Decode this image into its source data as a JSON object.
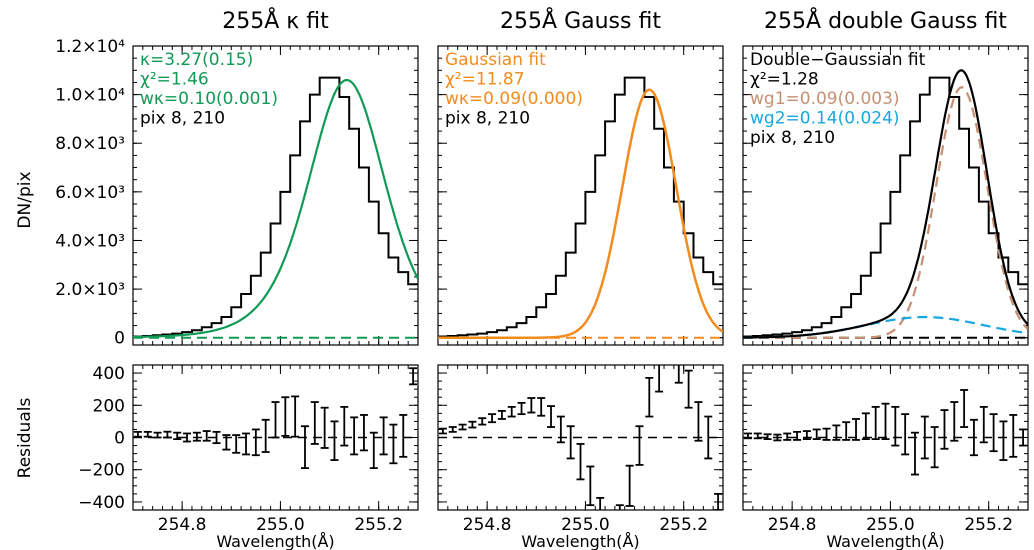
{
  "shared": {
    "ylabel_top": "DN/pix",
    "ylabel_bottom": "Residuals",
    "xlabel": "Wavelength(Å)",
    "xticks": [
      "254.8",
      "255.0",
      "255.2"
    ],
    "yticks_top": [
      "0",
      "2.0×10³",
      "4.0×10³",
      "6.0×10³",
      "8.0×10³",
      "1.0×10⁴",
      "1.2×10⁴"
    ],
    "yticks_bottom": [
      "400",
      "200",
      "0",
      "−200",
      "−400"
    ]
  },
  "colors": {
    "kappa": "#119a55",
    "gauss": "#f28c1e",
    "g1": "#c69074",
    "g2": "#15a8e0",
    "data": "#000000"
  },
  "chart_data": [
    {
      "type": "line",
      "title": "255Å κ fit",
      "xlim": [
        254.7,
        255.28
      ],
      "ylim": [
        -300,
        12000
      ],
      "residual_ylim": [
        -450,
        450
      ],
      "annotations": [
        {
          "text": "κ=3.27(0.15)",
          "color": "#119a55"
        },
        {
          "text": "χ²=1.46",
          "color": "#119a55"
        },
        {
          "text": "wκ=0.10(0.001)",
          "color": "#119a55"
        },
        {
          "text": "pix 8, 210",
          "color": "#000000"
        }
      ],
      "fit_name": "κ fit",
      "fit_color": "#119a55",
      "residuals": {
        "x": [
          254.71,
          254.73,
          254.75,
          254.77,
          254.79,
          254.81,
          254.83,
          254.85,
          254.87,
          254.89,
          254.91,
          254.93,
          254.95,
          254.97,
          254.99,
          255.01,
          255.03,
          255.05,
          255.07,
          255.09,
          255.11,
          255.13,
          255.15,
          255.17,
          255.19,
          255.21,
          255.23,
          255.25,
          255.27
        ],
        "y": [
          20,
          20,
          15,
          18,
          10,
          0,
          5,
          10,
          0,
          -30,
          -40,
          -40,
          -30,
          10,
          110,
          130,
          130,
          -60,
          90,
          60,
          -20,
          70,
          10,
          30,
          -80,
          10,
          -40,
          10,
          380
        ],
        "err": [
          15,
          15,
          15,
          18,
          20,
          25,
          25,
          30,
          35,
          45,
          55,
          65,
          80,
          100,
          110,
          120,
          125,
          130,
          130,
          125,
          120,
          120,
          115,
          110,
          110,
          115,
          120,
          130,
          50
        ]
      }
    },
    {
      "type": "line",
      "title": "255Å Gauss fit",
      "xlim": [
        254.7,
        255.28
      ],
      "ylim": [
        -300,
        12000
      ],
      "residual_ylim": [
        -450,
        450
      ],
      "annotations": [
        {
          "text": "Gaussian fit",
          "color": "#f28c1e"
        },
        {
          "text": "χ²=11.87",
          "color": "#f28c1e"
        },
        {
          "text": "wκ=0.09(0.000)",
          "color": "#f28c1e"
        },
        {
          "text": "pix 8, 210",
          "color": "#000000"
        }
      ],
      "fit_name": "Gaussian fit",
      "fit_color": "#f28c1e",
      "residuals": {
        "x": [
          254.71,
          254.73,
          254.75,
          254.77,
          254.79,
          254.81,
          254.83,
          254.85,
          254.87,
          254.89,
          254.91,
          254.93,
          254.95,
          254.97,
          254.99,
          255.01,
          255.03,
          255.05,
          255.07,
          255.09,
          255.11,
          255.13,
          255.15,
          255.17,
          255.19,
          255.21,
          255.23,
          255.25,
          255.27
        ],
        "y": [
          40,
          50,
          65,
          80,
          100,
          120,
          140,
          160,
          180,
          200,
          190,
          130,
          50,
          -30,
          -150,
          -300,
          -500,
          -700,
          -550,
          -300,
          -50,
          250,
          400,
          600,
          450,
          300,
          100,
          0,
          -400
        ],
        "err": [
          15,
          15,
          15,
          18,
          20,
          25,
          25,
          30,
          35,
          45,
          55,
          65,
          80,
          100,
          110,
          120,
          125,
          130,
          130,
          125,
          120,
          120,
          115,
          110,
          110,
          115,
          120,
          130,
          50
        ]
      }
    },
    {
      "type": "line",
      "title": "255Å double Gauss fit",
      "xlim": [
        254.7,
        255.28
      ],
      "ylim": [
        -300,
        12000
      ],
      "residual_ylim": [
        -450,
        450
      ],
      "annotations": [
        {
          "text": "Double−Gaussian fit",
          "color": "#000000"
        },
        {
          "text": "χ²=1.28",
          "color": "#000000"
        },
        {
          "text": "wg1=0.09(0.003)",
          "color": "#c69074"
        },
        {
          "text": "wg2=0.14(0.024)",
          "color": "#15a8e0"
        },
        {
          "text": "pix 8, 210",
          "color": "#000000"
        }
      ],
      "fit_name": "Double−Gaussian fit",
      "fit_color": "#000000",
      "residuals": {
        "x": [
          254.71,
          254.73,
          254.75,
          254.77,
          254.79,
          254.81,
          254.83,
          254.85,
          254.87,
          254.89,
          254.91,
          254.93,
          254.95,
          254.97,
          254.99,
          255.01,
          255.03,
          255.05,
          255.07,
          255.09,
          255.11,
          255.13,
          255.15,
          255.17,
          255.19,
          255.21,
          255.23,
          255.25,
          255.27
        ],
        "y": [
          10,
          10,
          5,
          0,
          5,
          10,
          15,
          20,
          20,
          30,
          40,
          50,
          70,
          90,
          100,
          70,
          20,
          -100,
          0,
          -60,
          50,
          100,
          180,
          0,
          80,
          30,
          -20,
          10,
          0
        ],
        "err": [
          15,
          15,
          15,
          18,
          20,
          25,
          25,
          30,
          35,
          45,
          55,
          65,
          80,
          100,
          110,
          120,
          125,
          130,
          130,
          125,
          120,
          120,
          115,
          110,
          110,
          115,
          120,
          130,
          50
        ]
      }
    }
  ],
  "spectrum": {
    "x": [
      254.71,
      254.73,
      254.75,
      254.77,
      254.79,
      254.81,
      254.83,
      254.85,
      254.87,
      254.89,
      254.91,
      254.93,
      254.95,
      254.97,
      254.99,
      255.01,
      255.03,
      255.05,
      255.07,
      255.09,
      255.11,
      255.13,
      255.15,
      255.17,
      255.19,
      255.21,
      255.23,
      255.25,
      255.27
    ],
    "y": [
      50,
      70,
      100,
      130,
      170,
      230,
      310,
      430,
      600,
      850,
      1250,
      1800,
      2550,
      3500,
      4700,
      6000,
      7500,
      8900,
      10000,
      10700,
      10700,
      9900,
      8600,
      7000,
      5600,
      4300,
      3300,
      2700,
      2200
    ]
  },
  "model_params": {
    "kappa_peak": 10600,
    "gauss_peak": 10200,
    "g1_peak": 10300,
    "g2_peak": 850
  }
}
